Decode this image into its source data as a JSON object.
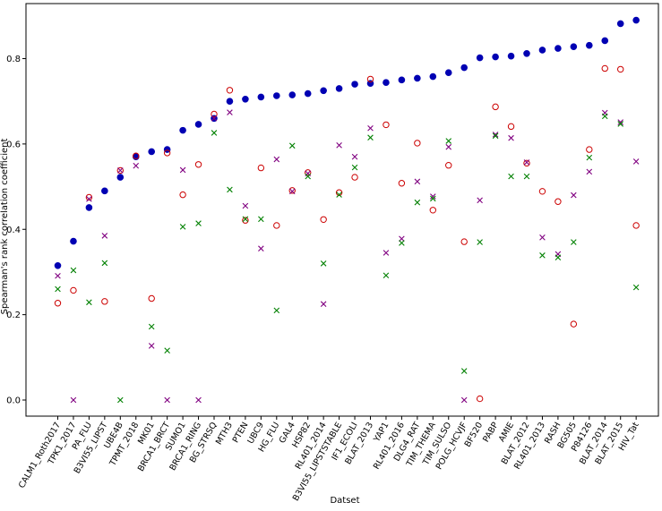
{
  "chart_data": {
    "type": "scatter",
    "title": "",
    "xlabel": "Datset",
    "ylabel": "Spearman's rank correlation coefficient",
    "ylim": [
      -0.09,
      0.93
    ],
    "yticks": [
      0.0,
      0.2,
      0.4,
      0.6,
      0.8
    ],
    "ytick_labels": [
      "0.0",
      "0.2",
      "0.4",
      "0.6",
      "0.8"
    ],
    "grid": false,
    "legend": "none",
    "categories": [
      "CALM1_Roth2017",
      "TPK1_2017",
      "PA_FLU",
      "B3VI55_LIPST",
      "UBE4B",
      "TPMT_2018",
      "MK01",
      "BRCA1_BRCT",
      "SUMO1",
      "BRCA1_RING",
      "BG_STRSQ",
      "MTH3",
      "PTEN",
      "UBC9",
      "HG_FLU",
      "GAL4",
      "HSP82",
      "RL401_2014",
      "B3VI55_LIPSTSTABLE",
      "IF1_ECOLI",
      "BLAT_2013",
      "YAP1",
      "RL401_2016",
      "DLG4_RAT",
      "TIM_THEMA",
      "TIM_SULSO",
      "POLG_HCVJF",
      "BF520",
      "PABP",
      "AMIE",
      "BLAT_2012",
      "RL401_2013",
      "RASH",
      "BG505",
      "P84126",
      "BLAT_2014",
      "BLAT_2015",
      "HIV_Tat"
    ],
    "series": [
      {
        "name": "blue-filled-circle",
        "marker": "filled-circle",
        "color": "#0000b3",
        "values": [
          0.315,
          0.372,
          0.451,
          0.49,
          0.522,
          0.57,
          0.582,
          0.587,
          0.632,
          0.646,
          0.66,
          0.7,
          0.705,
          0.71,
          0.713,
          0.715,
          0.718,
          0.725,
          0.73,
          0.74,
          0.742,
          0.744,
          0.75,
          0.754,
          0.758,
          0.767,
          0.779,
          0.802,
          0.804,
          0.806,
          0.812,
          0.82,
          0.824,
          0.828,
          0.831,
          0.842,
          0.882,
          0.89
        ]
      },
      {
        "name": "red-hollow-circle",
        "marker": "hollow-circle",
        "color": "#cc0000",
        "values": [
          0.227,
          0.257,
          0.475,
          0.231,
          0.538,
          0.572,
          0.238,
          0.579,
          0.481,
          0.552,
          0.67,
          0.726,
          0.421,
          0.544,
          0.409,
          0.491,
          0.533,
          0.423,
          0.486,
          0.522,
          0.752,
          0.645,
          0.508,
          0.602,
          0.445,
          0.55,
          0.371,
          0.003,
          0.687,
          0.641,
          0.555,
          0.489,
          0.465,
          0.178,
          0.587,
          0.777,
          0.775,
          0.409
        ]
      },
      {
        "name": "purple-x",
        "marker": "x",
        "color": "#800080",
        "values": [
          0.291,
          0.0,
          0.471,
          0.385,
          0.538,
          0.549,
          0.127,
          0.0,
          0.539,
          0.0,
          0.66,
          0.674,
          0.455,
          0.355,
          0.564,
          0.489,
          0.531,
          0.225,
          0.597,
          0.57,
          0.637,
          0.345,
          0.378,
          0.512,
          0.477,
          0.593,
          0.0,
          0.468,
          0.622,
          0.614,
          0.557,
          0.381,
          0.342,
          0.48,
          0.535,
          0.673,
          0.651,
          0.559
        ]
      },
      {
        "name": "green-x",
        "marker": "x",
        "color": "#008000",
        "values": [
          0.26,
          0.304,
          0.229,
          0.321,
          0.0,
          null,
          0.172,
          0.116,
          0.406,
          0.414,
          0.626,
          0.493,
          0.424,
          0.424,
          0.21,
          0.596,
          0.524,
          0.32,
          0.481,
          0.545,
          0.615,
          0.292,
          0.368,
          0.463,
          0.472,
          0.607,
          0.068,
          0.37,
          0.619,
          0.524,
          0.524,
          0.339,
          0.334,
          0.37,
          0.568,
          0.665,
          0.647,
          0.264
        ]
      }
    ]
  }
}
